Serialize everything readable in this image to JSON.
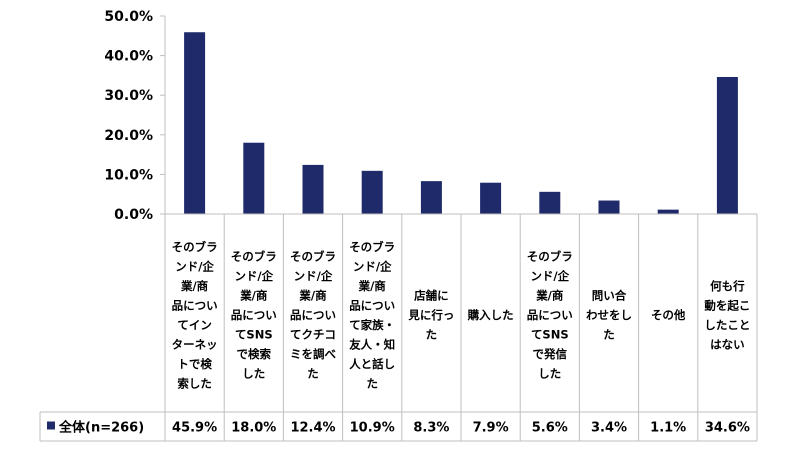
{
  "chart_data": {
    "type": "bar",
    "categories": [
      "そのブランド/企業/商品についてインターネットで検索した",
      "そのブランド/企業/商品についてSNSで検索した",
      "そのブランド/企業/商品についてクチコミを調べた",
      "そのブランド/企業/商品について家族・友人・知人と話した",
      "店舗に見に行った",
      "購入した",
      "そのブランド/企業/商品についてSNSで発信した",
      "問い合わせをした",
      "その他",
      "何も行動を起こしたことはない"
    ],
    "category_lines": [
      [
        "そのブラ",
        "ンド/企",
        "業/商",
        "品につい",
        "てイン",
        "ターネッ",
        "トで検",
        "索した"
      ],
      [
        "そのブラ",
        "ンド/企",
        "業/商",
        "品につい",
        "てSNS",
        "で検索",
        "した"
      ],
      [
        "そのブラ",
        "ンド/企",
        "業/商",
        "品につい",
        "てクチコ",
        "ミを調べ",
        "た"
      ],
      [
        "そのブラ",
        "ンド/企",
        "業/商",
        "品につい",
        "て家族・",
        "友人・知",
        "人と話し",
        "た"
      ],
      [
        "店舗に",
        "見に行っ",
        "た"
      ],
      [
        "購入した"
      ],
      [
        "そのブラ",
        "ンド/企",
        "業/商",
        "品につい",
        "てSNS",
        "で発信",
        "した"
      ],
      [
        "問い合",
        "わせをし",
        "た"
      ],
      [
        "その他"
      ],
      [
        "何も行",
        "動を起こ",
        "したこと",
        "はない"
      ]
    ],
    "series": [
      {
        "name": "全体(n=266)",
        "color": "#1f2a6b",
        "values": [
          45.9,
          18.0,
          12.4,
          10.9,
          8.3,
          7.9,
          5.6,
          3.4,
          1.1,
          34.6
        ],
        "labels": [
          "45.9%",
          "18.0%",
          "12.4%",
          "10.9%",
          "8.3%",
          "7.9%",
          "5.6%",
          "3.4%",
          "1.1%",
          "34.6%"
        ]
      }
    ],
    "ylim": [
      0,
      50
    ],
    "yticks": [
      "0.0%",
      "10.0%",
      "20.0%",
      "30.0%",
      "40.0%",
      "50.0%"
    ],
    "ytick_values": [
      0,
      10,
      20,
      30,
      40,
      50
    ],
    "grid": false,
    "legend": "data-table-left"
  }
}
